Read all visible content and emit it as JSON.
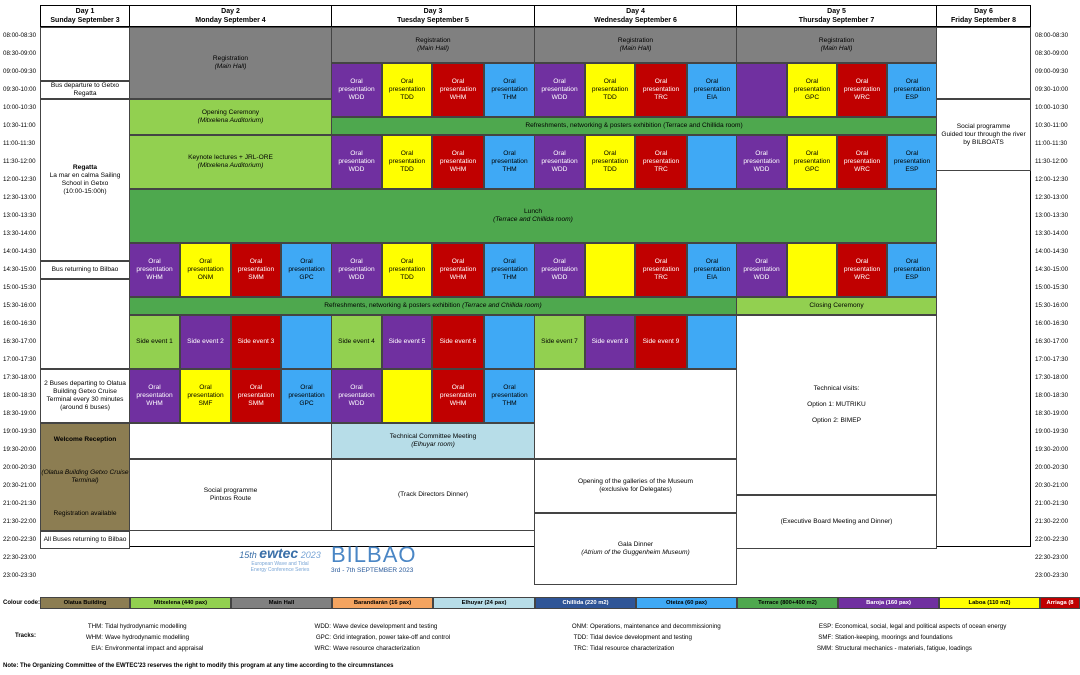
{
  "days": [
    {
      "label": "Day 1",
      "date": "Sunday September 3"
    },
    {
      "label": "Day 2",
      "date": "Monday September 4"
    },
    {
      "label": "Day 3",
      "date": "Tuesday September 5"
    },
    {
      "label": "Day 4",
      "date": "Wednesday September 6"
    },
    {
      "label": "Day 5",
      "date": "Thursday September 7"
    },
    {
      "label": "Day 6",
      "date": "Friday September 8"
    }
  ],
  "times": [
    "08:00-08:30",
    "08:30-09:00",
    "09:00-09:30",
    "09:30-10:00",
    "10:00-10:30",
    "10:30-11:00",
    "11:00-11:30",
    "11:30-12:00",
    "12:00-12:30",
    "12:30-13:00",
    "13:00-13:30",
    "13:30-14:00",
    "14:00-14:30",
    "14:30-15:00",
    "15:00-15:30",
    "15:30-16:00",
    "16:00-16:30",
    "16:30-17:00",
    "17:00-17:30",
    "17:30-18:00",
    "18:00-18:30",
    "18:30-19:00",
    "19:00-19:30",
    "19:30-20:00",
    "20:00-20:30",
    "20:30-21:00",
    "21:00-21:30",
    "21:30-22:00",
    "22:00-22:30",
    "22:30-23:00",
    "23:00-23:30"
  ],
  "cells": {
    "d1_bus_getxo": "Bus departure to Getxo Regatta",
    "d1_regatta_title": "Regatta",
    "d1_regatta_desc": "La mar en calma Sailing School in Getxo",
    "d1_regatta_time": "(10:00-15:00h)",
    "d1_bus_bilbao": "Bus returning to Bilbao",
    "d1_buses_olatua": "2 Buses departing to Olatua Building Getxo Cruise Terminal every 30 minutes (around 6 buses)",
    "d1_welcome": "Welcome Reception",
    "d1_welcome_venue": "(Olatua Building Getxo Cruise Terminal)",
    "d1_registration": "Registration available",
    "d1_buses_return": "All Buses returning to Bilbao",
    "registration": "Registration",
    "main_hall": "(Main Hall)",
    "opening": "Opening Ceremony",
    "mitxelena": "(Mitxelena Auditorium)",
    "keynote": "Keynote lectures + JRL-ORE",
    "refreshments": "Refreshments, networking & posters exhibition",
    "refresh_venue": "(Terrace and Chillida room)",
    "lunch": "Lunch",
    "oral": "Oral presentation",
    "oral_inline": "Oral presentation",
    "side1": "Side event 1",
    "side2": "Side event 2",
    "side3": "Side event 3",
    "side4": "Side event 4",
    "side5": "Side event 5",
    "side6": "Side event 6",
    "side7": "Side event 7",
    "side8": "Side event 8",
    "side9": "Side event 9",
    "social_d2": "Social programme",
    "pintxos": "Pintxos Route",
    "tcm": "Technical Committee Meeting",
    "elhuyar_room": "(Elhuyar room)",
    "track_dinner": "(Track Directors Dinner)",
    "opening_gal": "Opening of the galleries of the Museum",
    "exclusive": "(exclusive for Delegates)",
    "gala": "Gala Dinner",
    "guggenheim": "(Atrium of the Guggenheim Museum)",
    "closing": "Closing Ceremony",
    "tech_visits": "Technical visits:",
    "opt1": "Option 1: MUTRIKU",
    "opt2": "Option 2: BIMEP",
    "exec_board": "(Executive Board Meeting and Dinner)",
    "social_d6": "Social programme",
    "guided": "Guided tour through the river by BILBOATS"
  },
  "logo": {
    "edition": "15th",
    "name": "ewtec",
    "year": "2023",
    "sub1": "European Wave and Tidal",
    "sub2": "Energy Conference Series",
    "city": "BILBAO",
    "dates": "3rd - 7th SEPTEMBER 2023"
  },
  "legend": {
    "label": "Colour code:",
    "items": [
      {
        "name": "Olatua Building",
        "color": "#8c7d52"
      },
      {
        "name": "Mitxelena (440 pax)",
        "color": "#92d050"
      },
      {
        "name": "Main Hall",
        "color": "#808080"
      },
      {
        "name": "Barandiarán (16 pax)",
        "color": "#f4a460"
      },
      {
        "name": "Elhuyar (24 pax)",
        "color": "#b7dde8"
      },
      {
        "name": "Chillida (220 m2)",
        "color": "#2f5597"
      },
      {
        "name": "Oteiza (60 pax)",
        "color": "#3fa9f5"
      },
      {
        "name": "Terrace (800+400 m2)",
        "color": "#4ea84e"
      },
      {
        "name": "Baroja (160 pax)",
        "color": "#7030a0"
      },
      {
        "name": "Laboa (110 m2)",
        "color": "#ffff00"
      },
      {
        "name": "Arriaga (8",
        "color": "#c00000"
      }
    ]
  },
  "tracks": {
    "label": "Tracks:",
    "items": [
      {
        "code": "THM:",
        "desc": "Tidal hydrodynamic modelling"
      },
      {
        "code": "WHM:",
        "desc": "Wave hydrodynamic modelling"
      },
      {
        "code": "EIA:",
        "desc": "Environmental impact and appraisal"
      },
      {
        "code": "WDD:",
        "desc": "Wave device development and testing"
      },
      {
        "code": "GPC:",
        "desc": "Grid integration, power take-off and control"
      },
      {
        "code": "WRC:",
        "desc": "Wave resource characterization"
      },
      {
        "code": "ONM:",
        "desc": "Operations, maintenance and decommissioning"
      },
      {
        "code": "TDD:",
        "desc": "Tidal device development and testing"
      },
      {
        "code": "TRC:",
        "desc": "Tidal resource characterization"
      },
      {
        "code": "ESP:",
        "desc": "Economical, social, legal and political aspects of ocean energy"
      },
      {
        "code": "SMF:",
        "desc": "Station-keeping, moorings and foundations"
      },
      {
        "code": "SMM:",
        "desc": "Structural mechanics - materials, fatigue, loadings"
      }
    ]
  },
  "note": "Note: The Organizing Committee of the EWTEC'23 reserves the right to modify this program at any time according to the circumnstances"
}
